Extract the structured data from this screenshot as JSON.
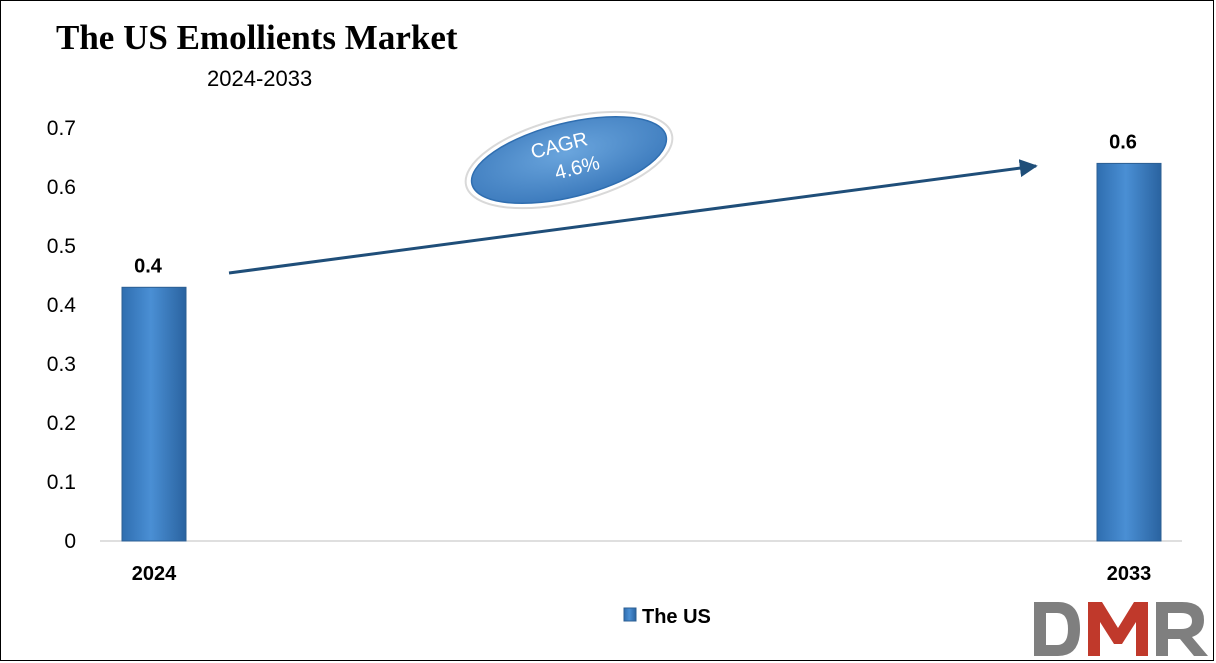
{
  "title": "The US Emollients Market",
  "subtitle": "2024-2033",
  "annotation": {
    "label": "CAGR",
    "value": "4.6%"
  },
  "colors": {
    "bar": "#3a7ec4",
    "bar_dark": "#2c5f93",
    "arrow": "#1f4e79",
    "ellipse": "#4f8cc9",
    "logo_gray": "#7f7f7f",
    "logo_red": "#c0392b"
  },
  "logo": {
    "text": "DMR"
  },
  "chart_data": {
    "type": "bar",
    "categories": [
      "2024",
      "2033"
    ],
    "series": [
      {
        "name": "The US",
        "values": [
          0.43,
          0.64
        ],
        "labels": [
          "0.4",
          "0.6"
        ]
      }
    ],
    "title": "The US Emollients Market",
    "subtitle": "2024-2033",
    "xlabel": "",
    "ylabel": "",
    "ylim": [
      0,
      0.7
    ],
    "yticks": [
      "0",
      "0.1",
      "0.2",
      "0.3",
      "0.4",
      "0.5",
      "0.6",
      "0.7"
    ],
    "grid": false,
    "legend": "bottom-center"
  }
}
